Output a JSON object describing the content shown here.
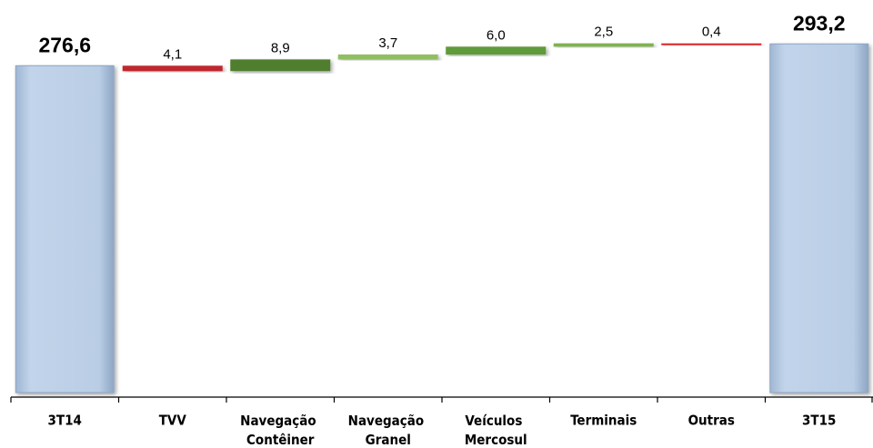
{
  "chart_data": {
    "type": "waterfall",
    "categories": [
      "3T14",
      "TVV",
      "Navegação Contêiner",
      "Navegação Granel",
      "Veículos Mercosul",
      "Terminais",
      "Outras",
      "3T15"
    ],
    "measures": [
      "absolute",
      "relative",
      "relative",
      "relative",
      "relative",
      "relative",
      "relative",
      "absolute"
    ],
    "values": [
      276.6,
      -4.1,
      8.9,
      3.7,
      6.0,
      2.5,
      -0.4,
      293.2
    ],
    "value_labels": [
      "276,6",
      "4,1",
      "8,9",
      "3,7",
      "6,0",
      "2,5",
      "0,4",
      "293,2"
    ],
    "colors": [
      "#b9cde5",
      "#c0272d",
      "#4f7f2f",
      "#8fbf5f",
      "#5f9a3a",
      "#7fb34f",
      "#d9262c",
      "#b9cde5"
    ],
    "ylim": [
      28,
      310
    ]
  }
}
